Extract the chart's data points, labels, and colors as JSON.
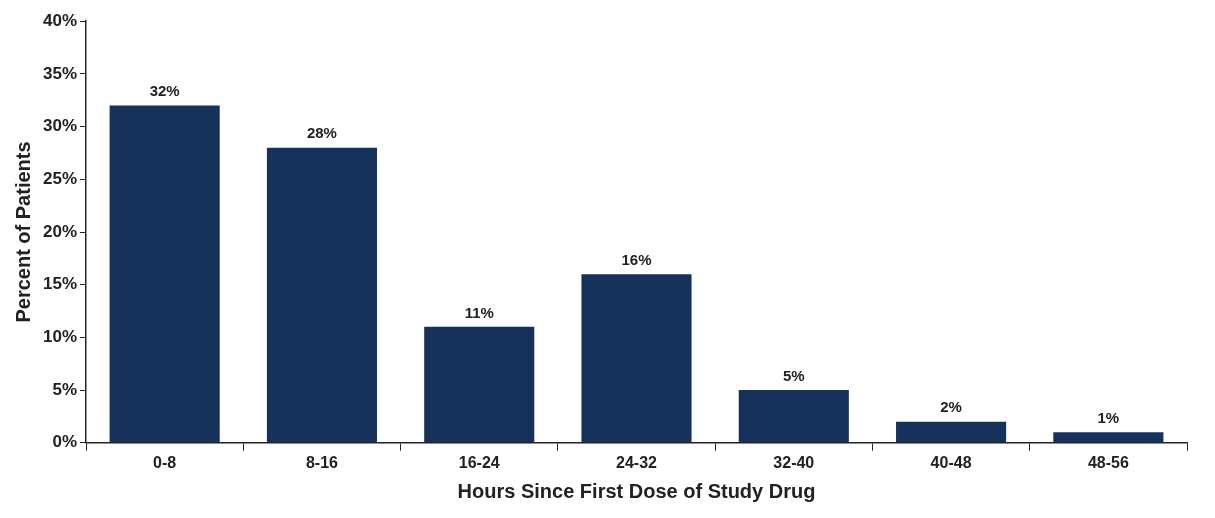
{
  "chart_data": {
    "type": "bar",
    "xlabel": "Hours Since First Dose of Study Drug",
    "ylabel": "Percent of Patients",
    "categories": [
      "0-8",
      "8-16",
      "16-24",
      "24-32",
      "32-40",
      "40-48",
      "48-56"
    ],
    "values": [
      32,
      28,
      11,
      16,
      5,
      2,
      1
    ],
    "value_labels": [
      "32%",
      "28%",
      "11%",
      "16%",
      "5%",
      "2%",
      "1%"
    ],
    "color": "#17325a",
    "ylim": [
      0,
      40
    ],
    "yticks": [
      {
        "value": 0,
        "label": "0%"
      },
      {
        "value": 5,
        "label": "5%"
      },
      {
        "value": 10,
        "label": "10%"
      },
      {
        "value": 15,
        "label": "15%"
      },
      {
        "value": 20,
        "label": "20%"
      },
      {
        "value": 25,
        "label": "25%"
      },
      {
        "value": 30,
        "label": "30%"
      },
      {
        "value": 35,
        "label": "35%"
      },
      {
        "value": 40,
        "label": "40%"
      }
    ],
    "grid": false,
    "legend": false
  }
}
